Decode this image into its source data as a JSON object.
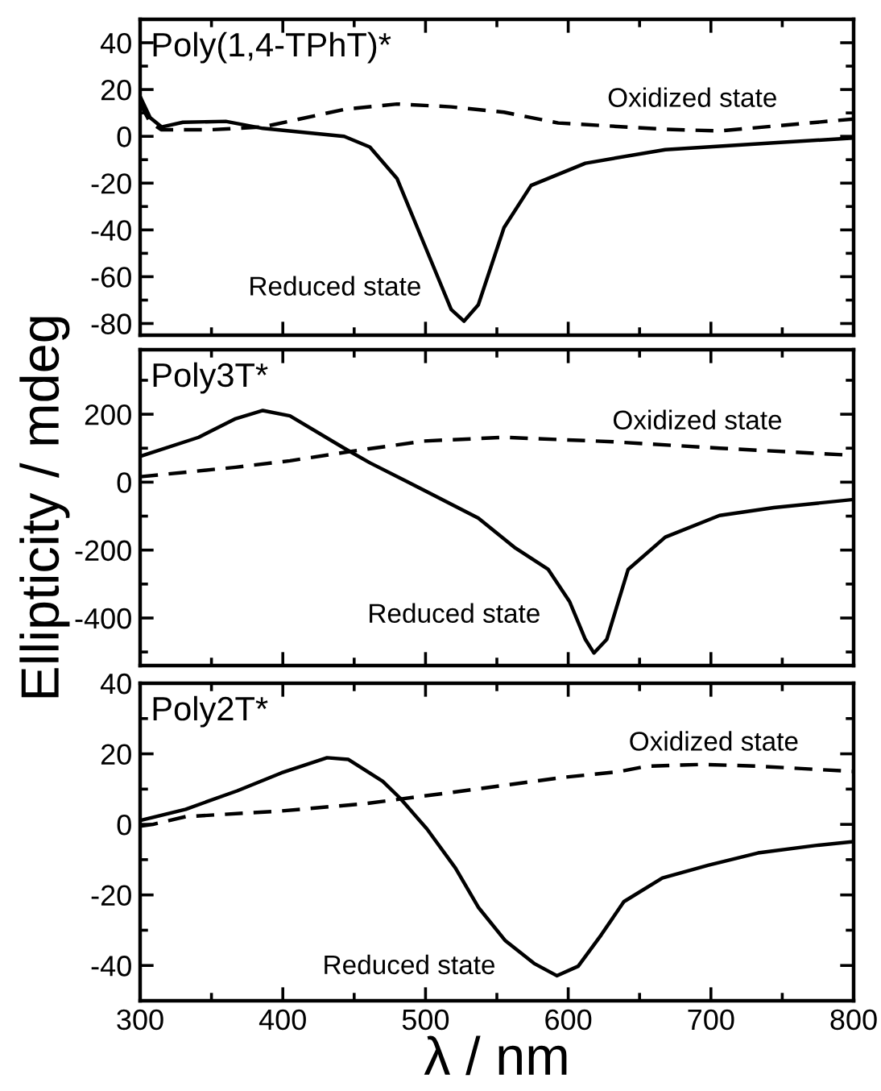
{
  "chart_data": [
    {
      "type": "line",
      "title": "Poly(1,4-TPhT)*",
      "xlim": [
        300,
        800
      ],
      "xticks": [
        300,
        400,
        500,
        600,
        700,
        800
      ],
      "ylim": [
        -85,
        50
      ],
      "yticks": [
        -80,
        -60,
        -40,
        -20,
        0,
        20,
        40
      ],
      "tick_labels": "y",
      "grid": false,
      "legend": false,
      "series": [
        {
          "color": "#000000",
          "line_style": "solid",
          "x": [
            300,
            307,
            315,
            330,
            360,
            386,
            443,
            461,
            480,
            499,
            518,
            527,
            537,
            555,
            574,
            612,
            668,
            744,
            800
          ],
          "values": [
            17,
            8,
            4,
            6,
            6.4,
            3.4,
            0,
            -4.6,
            -18,
            -46,
            -74,
            -79,
            -72,
            -39,
            -21,
            -11.5,
            -5.7,
            -2.8,
            -0.7
          ]
        },
        {
          "color": "#000000",
          "line_style": "dashed",
          "x": [
            300,
            307,
            315,
            349,
            386,
            443,
            480,
            518,
            555,
            593,
            668,
            706,
            800
          ],
          "values": [
            14,
            6,
            2.8,
            2.8,
            4,
            11.5,
            13.8,
            12.6,
            10.3,
            5.7,
            3,
            2.3,
            7.4
          ]
        }
      ],
      "annotations": [
        "Reduced state",
        "Oxidized state"
      ]
    },
    {
      "type": "line",
      "title": "Poly3T*",
      "ylabel": "Ellipticity / mdeg",
      "xlim": [
        300,
        800
      ],
      "xticks": [
        300,
        400,
        500,
        600,
        700,
        800
      ],
      "ylim": [
        -540,
        390
      ],
      "yticks": [
        -400,
        -200,
        0,
        200
      ],
      "tick_labels": "y",
      "grid": false,
      "legend": false,
      "series": [
        {
          "color": "#000000",
          "line_style": "solid",
          "x": [
            300,
            341,
            367,
            386,
            405,
            443,
            461,
            499,
            537,
            563,
            586,
            601,
            612,
            618,
            627,
            642,
            668,
            706,
            744,
            800
          ],
          "values": [
            76,
            132,
            187,
            211,
            195,
            100,
            57,
            -24,
            -106,
            -194,
            -257,
            -352,
            -463,
            -503,
            -463,
            -257,
            -162,
            -98,
            -75,
            -51
          ]
        },
        {
          "color": "#000000",
          "line_style": "dashed",
          "x": [
            300,
            367,
            405,
            450,
            499,
            555,
            631,
            706,
            800
          ],
          "values": [
            16,
            44,
            63,
            92,
            121,
            132,
            119,
            100,
            79
          ]
        }
      ],
      "annotations": [
        "Reduced state",
        "Oxidized state"
      ]
    },
    {
      "type": "line",
      "title": "Poly2T*",
      "xlabel": "λ / nm",
      "xlim": [
        300,
        800
      ],
      "xticks": [
        300,
        400,
        500,
        600,
        700,
        800
      ],
      "ylim": [
        -50,
        40
      ],
      "yticks": [
        -40,
        -20,
        0,
        20,
        40
      ],
      "grid": false,
      "legend": false,
      "series": [
        {
          "color": "#000000",
          "line_style": "solid",
          "x": [
            300,
            332,
            368,
            399,
            431,
            446,
            470,
            482,
            501,
            521,
            537,
            556,
            576,
            592,
            607,
            623,
            639,
            666,
            698,
            733,
            773,
            800
          ],
          "values": [
            1.1,
            4.3,
            9.5,
            14.6,
            18.9,
            18.4,
            12.2,
            7.5,
            -1.3,
            -12.4,
            -23.5,
            -33,
            -39.4,
            -42.9,
            -40.2,
            -31.4,
            -21.9,
            -15.2,
            -11.6,
            -8.1,
            -6,
            -4.9
          ]
        },
        {
          "color": "#000000",
          "line_style": "dashed",
          "x": [
            300,
            309,
            332,
            399,
            458,
            517,
            596,
            635,
            655,
            694,
            733,
            800
          ],
          "values": [
            -0.5,
            0,
            2.2,
            3.8,
            5.9,
            9,
            13.3,
            14.9,
            16.5,
            17,
            16.5,
            15
          ]
        }
      ],
      "annotations": [
        "Reduced state",
        "Oxidized state"
      ]
    }
  ]
}
